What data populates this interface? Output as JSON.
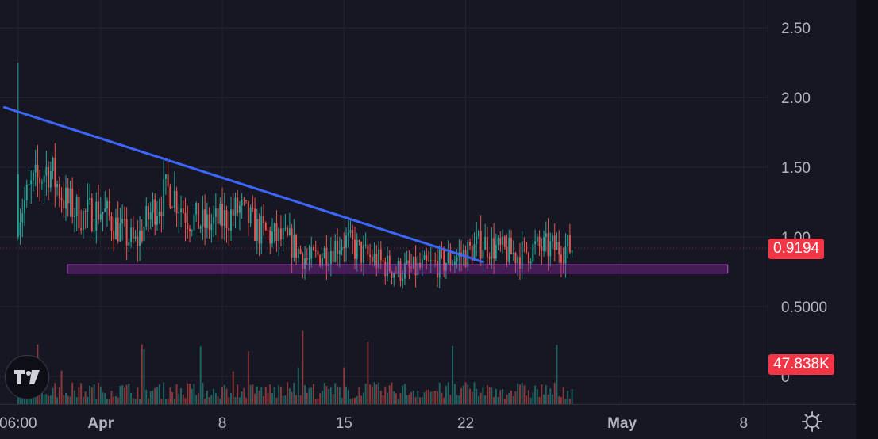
{
  "chart_data": {
    "type": "candlestick",
    "y_axis": {
      "ticks": [
        "2.50",
        "2.00",
        "1.50",
        "1.00",
        "0.5000",
        "0"
      ],
      "tick_values": [
        2.5,
        2.0,
        1.5,
        1.0,
        0.5,
        0
      ],
      "range": [
        -0.2,
        2.7
      ],
      "position": "right"
    },
    "x_axis": {
      "ticks": [
        "06:00",
        "Apr",
        "8",
        "15",
        "22",
        "May",
        "8"
      ],
      "tick_dates": [
        "2024-03-27T06:00",
        "2024-04-01",
        "2024-04-08",
        "2024-04-15",
        "2024-04-22",
        "2024-05-01",
        "2024-05-08"
      ],
      "range": [
        "2024-03-26T05:00",
        "2024-05-09T08:00"
      ]
    },
    "last_price": "0.9194",
    "last_volume": "47.838K",
    "price_series_anchors": [
      {
        "t": "2024-03-27T06:00",
        "v": 1.15
      },
      {
        "t": "2024-03-28T00:00",
        "v": 1.35
      },
      {
        "t": "2024-03-29T00:00",
        "v": 1.5
      },
      {
        "t": "2024-03-30T00:00",
        "v": 1.25
      },
      {
        "t": "2024-03-31T00:00",
        "v": 1.15
      },
      {
        "t": "2024-04-01T00:00",
        "v": 1.2
      },
      {
        "t": "2024-04-02T12:00",
        "v": 1.0
      },
      {
        "t": "2024-04-03T00:00",
        "v": 0.95
      },
      {
        "t": "2024-04-04T00:00",
        "v": 1.2
      },
      {
        "t": "2024-04-05T00:00",
        "v": 1.35
      },
      {
        "t": "2024-04-06T00:00",
        "v": 1.15
      },
      {
        "t": "2024-04-07T00:00",
        "v": 1.08
      },
      {
        "t": "2024-04-08T00:00",
        "v": 1.12
      },
      {
        "t": "2024-04-09T00:00",
        "v": 1.2
      },
      {
        "t": "2024-04-10T00:00",
        "v": 1.05
      },
      {
        "t": "2024-04-11T00:00",
        "v": 1.0
      },
      {
        "t": "2024-04-12T00:00",
        "v": 0.95
      },
      {
        "t": "2024-04-13T00:00",
        "v": 0.82
      },
      {
        "t": "2024-04-14T00:00",
        "v": 0.9
      },
      {
        "t": "2024-04-15T00:00",
        "v": 0.98
      },
      {
        "t": "2024-04-16T00:00",
        "v": 0.88
      },
      {
        "t": "2024-04-17T00:00",
        "v": 0.82
      },
      {
        "t": "2024-04-18T00:00",
        "v": 0.76
      },
      {
        "t": "2024-04-19T00:00",
        "v": 0.76
      },
      {
        "t": "2024-04-20T00:00",
        "v": 0.79
      },
      {
        "t": "2024-04-21T00:00",
        "v": 0.83
      },
      {
        "t": "2024-04-22T00:00",
        "v": 0.88
      },
      {
        "t": "2024-04-23T00:00",
        "v": 0.96
      },
      {
        "t": "2024-04-24T00:00",
        "v": 0.9
      },
      {
        "t": "2024-04-25T00:00",
        "v": 0.87
      },
      {
        "t": "2024-04-26T00:00",
        "v": 0.92
      },
      {
        "t": "2024-04-27T00:00",
        "v": 0.92
      },
      {
        "t": "2024-04-28T03:00",
        "v": 0.92
      }
    ],
    "annotations": [
      {
        "type": "trendline",
        "color": "#3d66ff",
        "from": {
          "t": "2024-03-26T11:00",
          "v": 1.93
        },
        "to": {
          "t": "2024-04-23T00:00",
          "v": 0.82
        }
      },
      {
        "type": "rectangle",
        "color": "#9c27b0",
        "from": {
          "t": "2024-03-30T02:00",
          "v": 0.8
        },
        "to": {
          "t": "2024-05-07T02:00",
          "v": 0.74
        }
      }
    ],
    "colors": {
      "up": "#26a69a",
      "down": "#ef5350",
      "grid": "#232532",
      "background": "#161722"
    },
    "grid": true
  },
  "ui": {
    "logo_text": "TV",
    "settings_icon": "gear-icon"
  }
}
